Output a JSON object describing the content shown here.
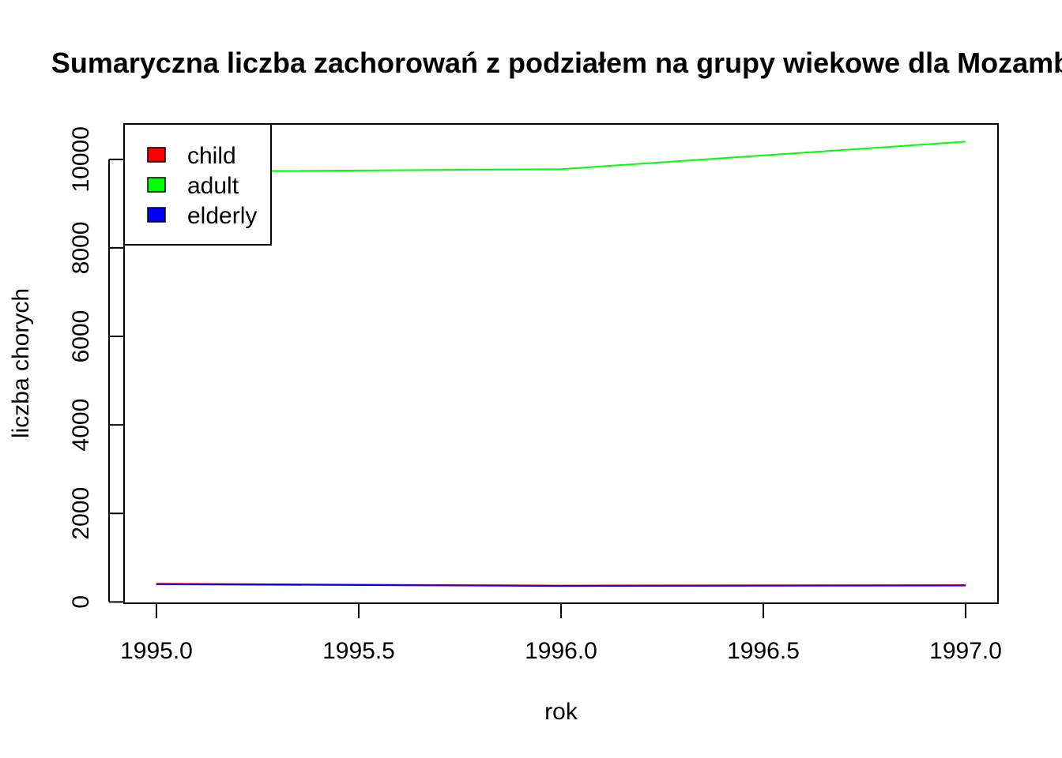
{
  "chart_data": {
    "type": "line",
    "title": "Sumaryczna liczba zachorowań z podziałem na grupy wiekowe dla Mozamb",
    "xlabel": "rok",
    "ylabel": "liczba chorych",
    "xlim": [
      1994.92,
      1997.08
    ],
    "ylim": [
      -30,
      10800
    ],
    "x_ticks": [
      1995.0,
      1995.5,
      1996.0,
      1996.5,
      1997.0
    ],
    "x_tick_labels": [
      "1995.0",
      "1995.5",
      "1996.0",
      "1996.5",
      "1997.0"
    ],
    "y_ticks": [
      0,
      2000,
      4000,
      6000,
      8000,
      10000
    ],
    "y_tick_labels": [
      "0",
      "2000",
      "4000",
      "6000",
      "8000",
      "10000"
    ],
    "grid": false,
    "legend_position": "top-left",
    "x": [
      1995,
      1996,
      1997
    ],
    "series": [
      {
        "name": "child",
        "color": "#ff0000",
        "values": [
          410,
          370,
          380
        ]
      },
      {
        "name": "adult",
        "color": "#00ff00",
        "values": [
          9720,
          9780,
          10400
        ]
      },
      {
        "name": "elderly",
        "color": "#0000ff",
        "values": [
          400,
          360,
          370
        ]
      }
    ]
  }
}
